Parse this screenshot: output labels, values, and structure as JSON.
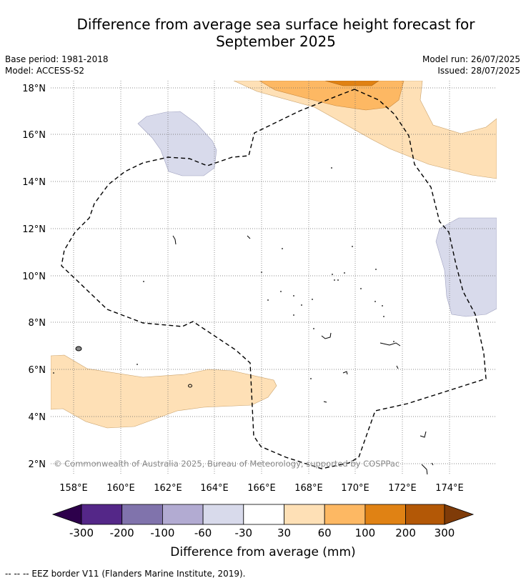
{
  "title_line1": "Difference from average sea surface height forecast for",
  "title_line2": "September 2025",
  "base_period": "Base period: 1981-2018",
  "model": "Model: ACCESS-S2",
  "model_run": "Model run: 26/07/2025",
  "issued": "Issued: 28/07/2025",
  "copyright": "© Commonwealth of Australia 2025, Bureau of Meteorology, supported by COSPPac",
  "footer": "--  --  -- EEZ border V11 (Flanders Marine Institute, 2019).",
  "map": {
    "lon_range": [
      157,
      176
    ],
    "lat_range": [
      1.5,
      18.3
    ],
    "lon_ticks": [
      "158°E",
      "160°E",
      "162°E",
      "164°E",
      "166°E",
      "168°E",
      "170°E",
      "172°E",
      "174°E"
    ],
    "lat_ticks": [
      "2°N",
      "4°N",
      "6°N",
      "8°N",
      "10°N",
      "12°N",
      "14°N",
      "16°N",
      "18°N"
    ],
    "grid": true
  },
  "colorbar": {
    "label": "Difference from average (mm)",
    "ticks": [
      "-300",
      "-200",
      "-100",
      "-60",
      "-30",
      "30",
      "60",
      "100",
      "200",
      "300"
    ],
    "colors": [
      "#2d004b",
      "#542788",
      "#8073ac",
      "#b2abd2",
      "#d8daeb",
      "#ffffff",
      "#fee0b6",
      "#fdb863",
      "#e08214",
      "#b35806",
      "#7f3b08"
    ]
  }
}
